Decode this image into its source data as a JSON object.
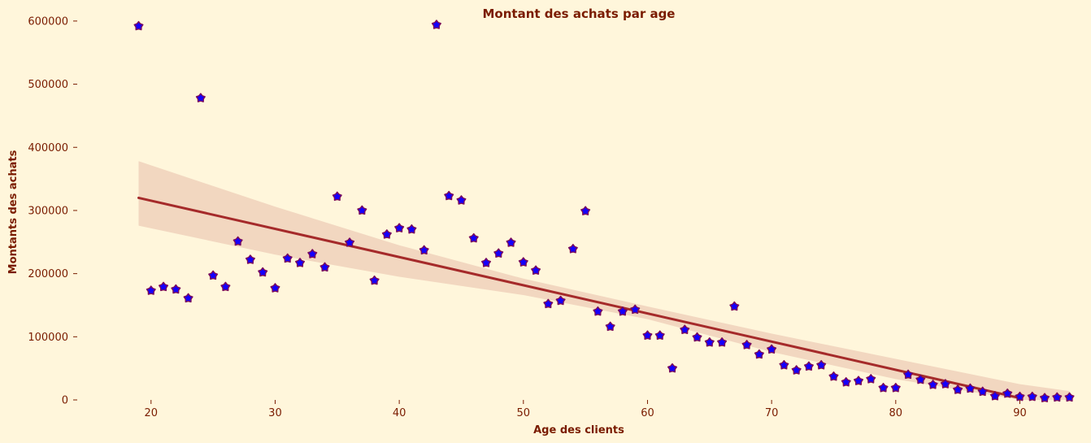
{
  "chart_data": {
    "type": "scatter",
    "title": "Montant des achats par age",
    "xlabel": "Age des clients",
    "ylabel": "Montants des achats",
    "xlim": [
      14.25,
      94.75
    ],
    "ylim": [
      0,
      605000
    ],
    "xticks": [
      20,
      30,
      40,
      50,
      60,
      70,
      80,
      90
    ],
    "yticks": [
      0,
      100000,
      200000,
      300000,
      400000,
      500000,
      600000
    ],
    "grid": false,
    "legend": "none",
    "colors": {
      "background": "#fff6db",
      "text": "#7a1c00",
      "point_fill": "#1400ff",
      "point_edge": "#7a0a5a",
      "regression_line": "#a52a2a",
      "confidence_band": "#f2d7c0"
    },
    "points": {
      "x": [
        19,
        20,
        21,
        22,
        23,
        24,
        25,
        26,
        27,
        28,
        29,
        30,
        31,
        32,
        33,
        34,
        35,
        36,
        37,
        38,
        39,
        40,
        41,
        42,
        43,
        44,
        45,
        46,
        47,
        48,
        49,
        50,
        51,
        52,
        53,
        54,
        55,
        56,
        57,
        58,
        59,
        60,
        61,
        62,
        63,
        64,
        65,
        66,
        67,
        68,
        69,
        70,
        71,
        72,
        73,
        74,
        75,
        76,
        77,
        78,
        79,
        80,
        81,
        82,
        83,
        84,
        85,
        86,
        87,
        88,
        89,
        90,
        91,
        92,
        93,
        94
      ],
      "y": [
        592000,
        173000,
        179000,
        175000,
        161000,
        478000,
        197000,
        179000,
        251000,
        222000,
        202000,
        177000,
        224000,
        217000,
        231000,
        210000,
        322000,
        249000,
        300000,
        189000,
        262000,
        272000,
        270000,
        237000,
        594000,
        323000,
        316000,
        256000,
        217000,
        232000,
        249000,
        218000,
        205000,
        152000,
        157000,
        239000,
        299000,
        140000,
        116000,
        140000,
        143000,
        102000,
        102000,
        50000,
        111000,
        99000,
        91000,
        91000,
        148000,
        87000,
        72000,
        80000,
        55000,
        47000,
        53000,
        55000,
        37000,
        28000,
        30000,
        33000,
        19000,
        19000,
        40000,
        32000,
        24000,
        25000,
        16000,
        18000,
        13000,
        6000,
        10000,
        5000,
        5000,
        3000,
        4000,
        4000
      ]
    },
    "regression": {
      "x": [
        19,
        90
      ],
      "y": [
        320000,
        3000
      ]
    },
    "confidence_band": {
      "x": [
        19,
        30,
        40,
        50,
        60,
        70,
        80,
        90,
        94
      ],
      "upper": [
        378000,
        306000,
        245000,
        192000,
        148000,
        105000,
        65000,
        25000,
        14000
      ],
      "lower": [
        276000,
        230000,
        195000,
        166000,
        128000,
        76000,
        33000,
        -10000,
        -25000
      ]
    }
  }
}
